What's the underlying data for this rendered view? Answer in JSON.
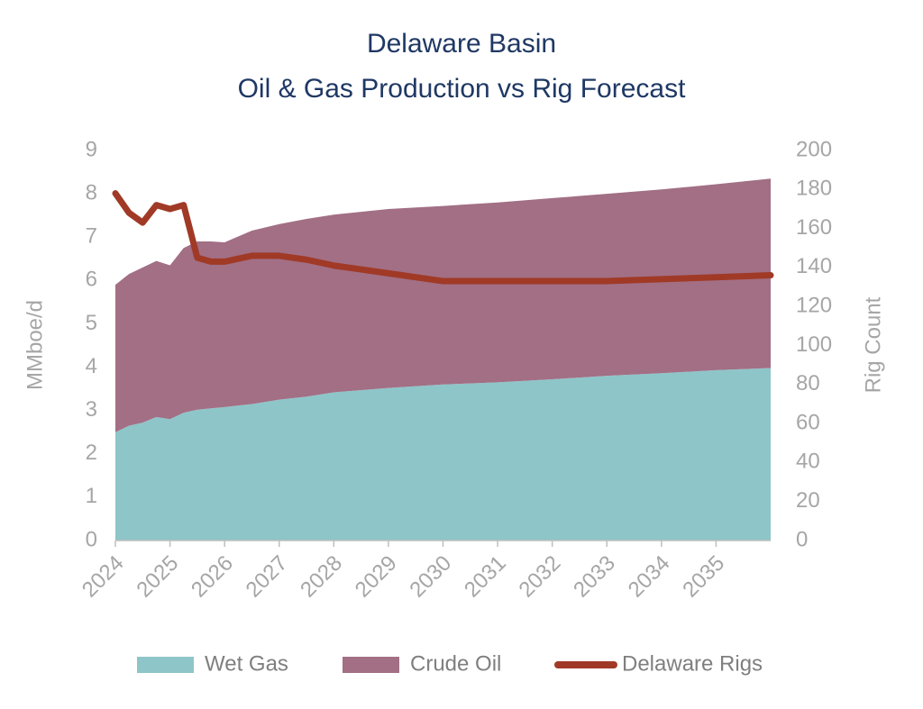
{
  "chart_data": {
    "type": "area-line",
    "title": [
      "Delaware Basin",
      "Oil & Gas Production vs Rig Forecast"
    ],
    "y_label": "MMboe/d",
    "y2_label": "Rig Count",
    "x": [
      2024,
      2024.25,
      2024.5,
      2024.75,
      2025,
      2025.25,
      2025.5,
      2025.75,
      2026,
      2026.5,
      2027,
      2027.5,
      2028,
      2029,
      2030,
      2031,
      2032,
      2033,
      2034,
      2035,
      2036
    ],
    "xlim": [
      2024,
      2036
    ],
    "xticks": [
      2024,
      2025,
      2026,
      2027,
      2028,
      2029,
      2030,
      2031,
      2032,
      2033,
      2034,
      2035
    ],
    "ylim": [
      0,
      9
    ],
    "yticks": [
      0,
      1,
      2,
      3,
      4,
      5,
      6,
      7,
      8,
      9
    ],
    "y2lim": [
      0,
      200
    ],
    "y2ticks": [
      0,
      20,
      40,
      60,
      80,
      100,
      120,
      140,
      160,
      180,
      200
    ],
    "series": [
      {
        "name": "Wet Gas",
        "type": "area",
        "color": "#8ec5c8",
        "values": [
          2.5,
          2.65,
          2.72,
          2.85,
          2.8,
          2.95,
          3.02,
          3.05,
          3.08,
          3.15,
          3.25,
          3.32,
          3.42,
          3.52,
          3.6,
          3.65,
          3.72,
          3.8,
          3.86,
          3.93,
          3.98
        ]
      },
      {
        "name": "Crude Oil",
        "type": "area",
        "color": "#a26f85",
        "values": [
          3.4,
          3.5,
          3.58,
          3.6,
          3.55,
          3.8,
          3.88,
          3.85,
          3.8,
          4.0,
          4.05,
          4.1,
          4.1,
          4.13,
          4.12,
          4.15,
          4.18,
          4.2,
          4.24,
          4.29,
          4.37
        ]
      },
      {
        "name": "Delaware Rigs",
        "type": "line",
        "axis": "y2",
        "color": "#a03a26",
        "values": [
          178,
          168,
          163,
          172,
          170,
          172,
          145,
          143,
          143,
          146,
          146,
          144,
          141,
          137,
          133,
          133,
          133,
          133,
          134,
          135,
          136
        ]
      }
    ]
  }
}
